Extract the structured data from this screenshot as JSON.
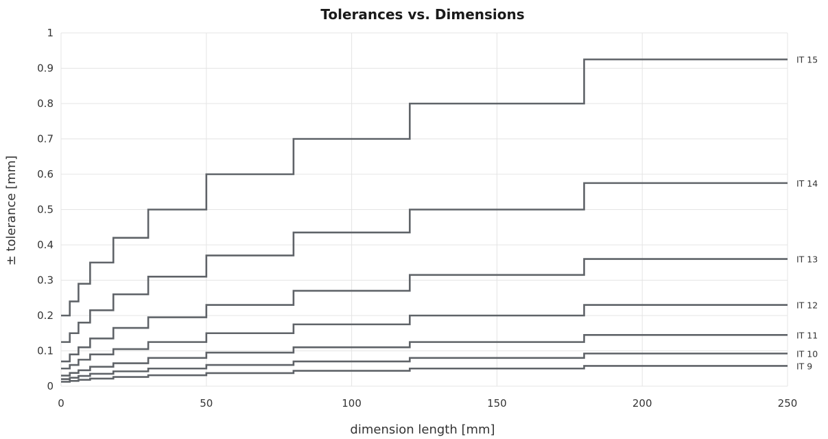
{
  "chart_data": {
    "type": "line",
    "step": true,
    "title": "Tolerances vs. Dimensions",
    "xlabel": "dimension length [mm]",
    "ylabel": "± tolerance [mm]",
    "xlim": [
      0,
      250
    ],
    "ylim": [
      0,
      1
    ],
    "xticks": [
      0,
      50,
      100,
      150,
      200,
      250
    ],
    "xtick_labels": [
      "0",
      "50",
      "100",
      "150",
      "200",
      "250"
    ],
    "yticks": [
      0,
      0.1,
      0.2,
      0.3,
      0.4,
      0.5,
      0.6,
      0.7,
      0.8,
      0.9,
      1
    ],
    "ytick_labels": [
      "0",
      "0.1",
      "0.2",
      "0.3",
      "0.4",
      "0.5",
      "0.6",
      "0.7",
      "0.8",
      "0.9",
      "1"
    ],
    "grid": true,
    "line_color": "#5f6368",
    "x_breaks": [
      0,
      3,
      6,
      10,
      18,
      30,
      50,
      80,
      120,
      180,
      250
    ],
    "series": [
      {
        "name": "IT 15",
        "values": [
          0.2,
          0.24,
          0.29,
          0.35,
          0.42,
          0.5,
          0.6,
          0.7,
          0.8,
          0.925
        ]
      },
      {
        "name": "IT 14",
        "values": [
          0.125,
          0.15,
          0.18,
          0.215,
          0.26,
          0.31,
          0.37,
          0.435,
          0.5,
          0.575
        ]
      },
      {
        "name": "IT 13",
        "values": [
          0.07,
          0.09,
          0.11,
          0.135,
          0.165,
          0.195,
          0.23,
          0.27,
          0.315,
          0.36
        ]
      },
      {
        "name": "IT 12",
        "values": [
          0.05,
          0.06,
          0.075,
          0.09,
          0.105,
          0.125,
          0.15,
          0.175,
          0.2,
          0.23
        ]
      },
      {
        "name": "IT 11",
        "values": [
          0.03,
          0.0375,
          0.045,
          0.055,
          0.065,
          0.08,
          0.095,
          0.11,
          0.125,
          0.145
        ]
      },
      {
        "name": "IT 10",
        "values": [
          0.02,
          0.024,
          0.029,
          0.035,
          0.042,
          0.05,
          0.06,
          0.07,
          0.08,
          0.0925
        ]
      },
      {
        "name": "IT 9",
        "values": [
          0.0125,
          0.015,
          0.018,
          0.0215,
          0.026,
          0.031,
          0.037,
          0.0435,
          0.05,
          0.0575
        ]
      }
    ]
  }
}
